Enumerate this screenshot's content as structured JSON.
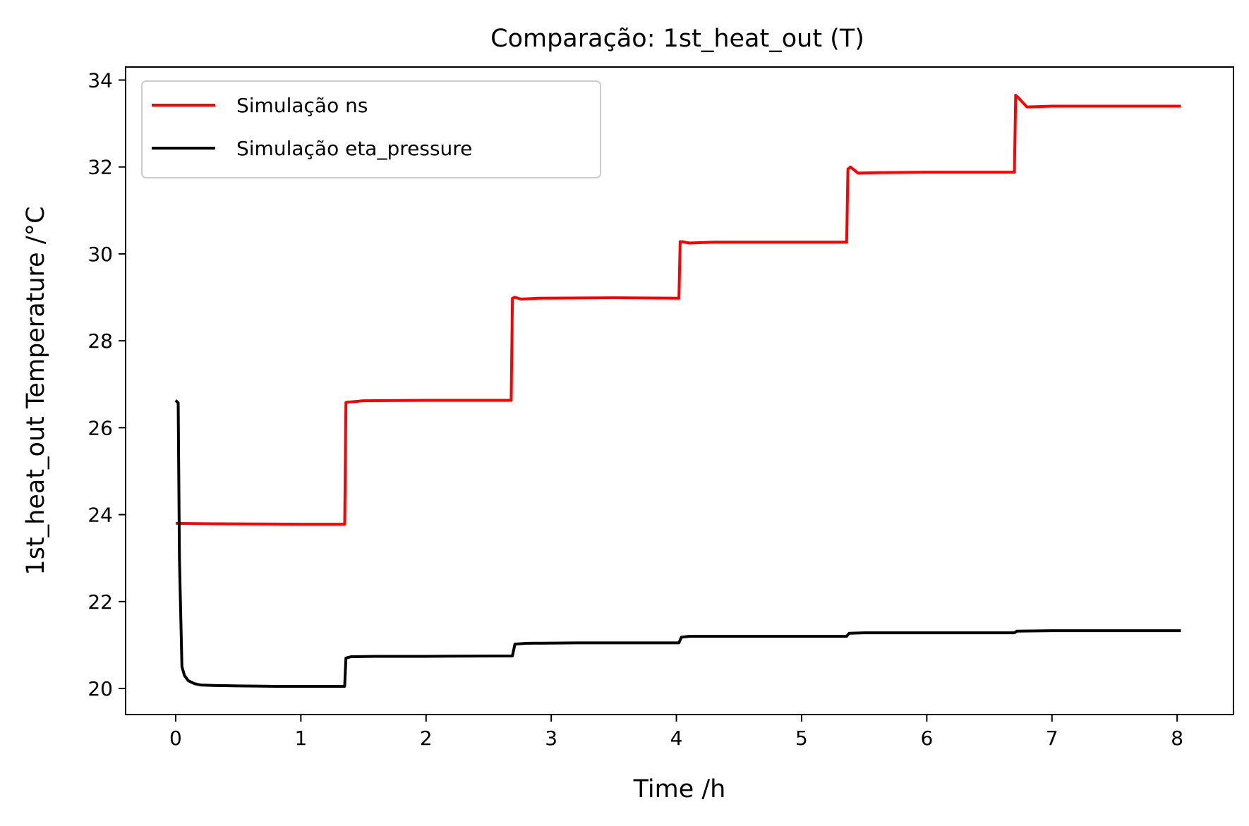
{
  "chart_data": {
    "type": "line",
    "title": "Comparação: 1st_heat_out (T)",
    "xlabel": "Time /h",
    "ylabel": "1st_heat_out Temperature /°C",
    "xlim": [
      -0.4,
      8.45
    ],
    "ylim": [
      19.4,
      34.3
    ],
    "xticks": [
      0,
      1,
      2,
      3,
      4,
      5,
      6,
      7,
      8
    ],
    "yticks": [
      20,
      22,
      24,
      26,
      28,
      30,
      32,
      34
    ],
    "grid": false,
    "legend_position": "top-left",
    "series": [
      {
        "name": "Simulação ns",
        "color": "#ff0000",
        "x": [
          0.0,
          0.3,
          1.0,
          1.35,
          1.36,
          1.38,
          1.5,
          2.0,
          2.68,
          2.69,
          2.71,
          2.76,
          2.9,
          3.5,
          4.02,
          4.03,
          4.05,
          4.1,
          4.3,
          5.0,
          5.36,
          5.37,
          5.39,
          5.45,
          5.6,
          6.0,
          6.7,
          6.71,
          6.73,
          6.8,
          7.0,
          8.03
        ],
        "y": [
          23.8,
          23.79,
          23.78,
          23.78,
          26.58,
          26.59,
          26.62,
          26.63,
          26.63,
          28.98,
          29.0,
          28.96,
          28.98,
          28.99,
          28.98,
          30.28,
          30.28,
          30.25,
          30.27,
          30.27,
          30.27,
          31.95,
          32.0,
          31.86,
          31.87,
          31.88,
          31.88,
          33.65,
          33.6,
          33.38,
          33.4,
          33.4
        ]
      },
      {
        "name": "Simulação eta_pressure",
        "color": "#000000",
        "x": [
          0.0,
          0.02,
          0.03,
          0.05,
          0.07,
          0.1,
          0.15,
          0.2,
          0.3,
          0.5,
          0.8,
          1.35,
          1.36,
          1.4,
          1.6,
          2.0,
          2.69,
          2.71,
          2.8,
          3.2,
          4.02,
          4.04,
          4.1,
          4.5,
          5.36,
          5.38,
          5.5,
          6.0,
          6.7,
          6.72,
          7.0,
          8.03
        ],
        "y": [
          26.63,
          26.57,
          23.0,
          20.5,
          20.3,
          20.18,
          20.11,
          20.08,
          20.07,
          20.06,
          20.05,
          20.05,
          20.7,
          20.73,
          20.74,
          20.74,
          20.75,
          21.02,
          21.04,
          21.05,
          21.05,
          21.18,
          21.2,
          21.2,
          21.2,
          21.27,
          21.28,
          21.28,
          21.28,
          21.32,
          21.33,
          21.33
        ]
      }
    ]
  }
}
